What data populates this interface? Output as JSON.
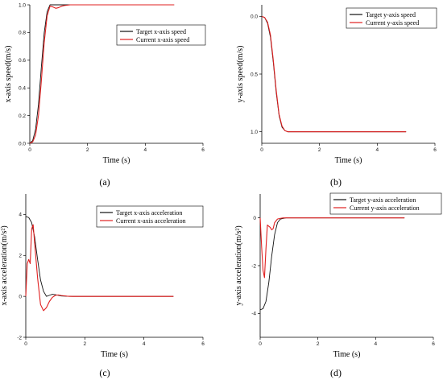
{
  "colors": {
    "target": "#111111",
    "current": "#e02020",
    "axis": "#000000"
  },
  "chart_data": [
    {
      "id": "a",
      "type": "line",
      "panel_label": "(a)",
      "xlabel": "Time (s)",
      "ylabel": "x-axis speed(m/s)",
      "xlim": [
        0,
        6
      ],
      "ylim": [
        0,
        1
      ],
      "x_ticks": [
        0,
        2,
        4,
        6
      ],
      "y_ticks": [
        0.0,
        0.2,
        0.4,
        0.6,
        0.8,
        1.0
      ],
      "y_tick_labels": [
        "0.0",
        "0.2",
        "0.4",
        "0.6",
        "0.8",
        "1.0"
      ],
      "y_inverted": false,
      "legend_position": "top-right",
      "series": [
        {
          "name": "Target x-axis speed",
          "color": "#111111",
          "x": [
            0,
            0.1,
            0.2,
            0.3,
            0.4,
            0.5,
            0.6,
            0.7,
            0.8,
            1.0,
            1.2,
            1.5,
            2.0,
            3.0,
            4.0,
            5.0
          ],
          "y": [
            0,
            0.02,
            0.1,
            0.28,
            0.55,
            0.8,
            0.95,
            1.0,
            1.0,
            1.0,
            1.0,
            1.0,
            1.0,
            1.0,
            1.0,
            1.0
          ]
        },
        {
          "name": "Current x-axis speed",
          "color": "#e02020",
          "x": [
            0,
            0.1,
            0.2,
            0.3,
            0.4,
            0.5,
            0.6,
            0.7,
            0.8,
            0.9,
            1.0,
            1.1,
            1.2,
            1.4,
            1.6,
            2.0,
            3.0,
            4.0,
            5.0
          ],
          "y": [
            0,
            0.01,
            0.06,
            0.2,
            0.45,
            0.73,
            0.92,
            0.99,
            0.985,
            0.975,
            0.98,
            0.99,
            0.995,
            1.0,
            1.0,
            1.0,
            1.0,
            1.0,
            1.0
          ]
        }
      ]
    },
    {
      "id": "b",
      "type": "line",
      "panel_label": "(b)",
      "xlabel": "Time (s)",
      "ylabel": "y-axis speed(m/s)",
      "xlim": [
        0,
        6
      ],
      "ylim": [
        -0.1,
        1.1
      ],
      "x_ticks": [
        0,
        2,
        4,
        6
      ],
      "y_ticks": [
        0.0,
        0.5,
        1.0
      ],
      "y_tick_labels": [
        "0.0",
        "0.5",
        "1.0"
      ],
      "y_inverted": true,
      "legend_position": "top-right",
      "series": [
        {
          "name": "Target y-axis speed",
          "color": "#111111",
          "x": [
            0,
            0.1,
            0.2,
            0.3,
            0.4,
            0.5,
            0.6,
            0.7,
            0.8,
            0.9,
            1.0,
            1.5,
            2.0,
            3.0,
            4.0,
            5.0
          ],
          "y": [
            0,
            0.01,
            0.06,
            0.18,
            0.4,
            0.66,
            0.86,
            0.96,
            0.99,
            1.0,
            1.0,
            1.0,
            1.0,
            1.0,
            1.0,
            1.0
          ]
        },
        {
          "name": "Current y-axis speed",
          "color": "#e02020",
          "x": [
            0,
            0.1,
            0.2,
            0.3,
            0.4,
            0.5,
            0.6,
            0.7,
            0.8,
            0.9,
            1.0,
            1.5,
            2.0,
            3.0,
            4.0,
            5.0
          ],
          "y": [
            0,
            0.01,
            0.05,
            0.16,
            0.38,
            0.64,
            0.85,
            0.95,
            0.99,
            1.0,
            1.0,
            1.0,
            1.0,
            1.0,
            1.0,
            1.0
          ]
        }
      ]
    },
    {
      "id": "c",
      "type": "line",
      "panel_label": "(c)",
      "xlabel": "Time (s)",
      "ylabel": "x-axis acceleration(m/s²)",
      "xlim": [
        0,
        6
      ],
      "ylim": [
        -2,
        5
      ],
      "x_ticks": [
        0,
        2,
        4,
        6
      ],
      "y_ticks": [
        -2,
        0,
        2,
        4
      ],
      "y_tick_labels": [
        "-2",
        "0",
        "2",
        "4"
      ],
      "y_inverted": false,
      "legend_position": "top-right",
      "series": [
        {
          "name": "Target x-axis acceleration",
          "color": "#111111",
          "x": [
            0,
            0.1,
            0.2,
            0.3,
            0.4,
            0.5,
            0.6,
            0.7,
            0.8,
            0.9,
            1.0,
            1.2,
            1.5,
            2.0,
            3.0,
            4.0,
            5.0
          ],
          "y": [
            3.9,
            3.85,
            3.6,
            2.9,
            1.8,
            0.8,
            0.25,
            0.0,
            0.05,
            0.1,
            0.08,
            0.02,
            0.0,
            0.0,
            0.0,
            0.0,
            0.0
          ]
        },
        {
          "name": "Current x-axis acceleration",
          "color": "#e02020",
          "x": [
            0,
            0.05,
            0.1,
            0.15,
            0.2,
            0.25,
            0.3,
            0.4,
            0.5,
            0.6,
            0.7,
            0.8,
            0.9,
            1.0,
            1.1,
            1.2,
            1.4,
            1.6,
            2.0,
            3.0,
            4.0,
            5.0
          ],
          "y": [
            0.0,
            1.6,
            1.8,
            1.6,
            3.3,
            3.5,
            2.6,
            0.9,
            -0.4,
            -0.7,
            -0.55,
            -0.25,
            -0.05,
            0.05,
            0.07,
            0.04,
            0.01,
            0.0,
            0.0,
            0.0,
            0.0,
            0.0
          ]
        }
      ]
    },
    {
      "id": "d",
      "type": "line",
      "panel_label": "(d)",
      "xlabel": "Time (s)",
      "ylabel": "y-axis acceleration(m/s²)",
      "xlim": [
        0,
        6
      ],
      "ylim": [
        -5,
        1
      ],
      "x_ticks": [
        0,
        2,
        4,
        6
      ],
      "y_ticks": [
        -4,
        -2,
        0
      ],
      "y_tick_labels": [
        "-4",
        "-2",
        "0"
      ],
      "y_inverted": false,
      "legend_position": "top-right",
      "series": [
        {
          "name": "Target y-axis acceleration",
          "color": "#111111",
          "x": [
            0,
            0.1,
            0.2,
            0.3,
            0.4,
            0.5,
            0.6,
            0.7,
            0.8,
            0.9,
            1.0,
            1.5,
            2.0,
            3.0,
            4.0,
            5.0
          ],
          "y": [
            -3.85,
            -3.8,
            -3.5,
            -2.7,
            -1.6,
            -0.7,
            -0.2,
            -0.05,
            -0.02,
            0.0,
            0.0,
            0.0,
            0.0,
            0.0,
            0.0,
            0.0
          ]
        },
        {
          "name": "Current y-axis acceleration",
          "color": "#e02020",
          "x": [
            0,
            0.05,
            0.1,
            0.15,
            0.2,
            0.25,
            0.3,
            0.35,
            0.4,
            0.45,
            0.5,
            0.6,
            0.7,
            0.8,
            0.9,
            1.0,
            1.5,
            2.0,
            3.0,
            4.0,
            5.0
          ],
          "y": [
            0.0,
            -1.2,
            -2.2,
            -2.5,
            -1.3,
            -0.3,
            -0.35,
            -0.4,
            -0.5,
            -0.45,
            -0.2,
            -0.05,
            -0.02,
            0.0,
            0.0,
            0.0,
            0.0,
            0.0,
            0.0,
            0.0,
            0.0
          ]
        }
      ]
    }
  ]
}
